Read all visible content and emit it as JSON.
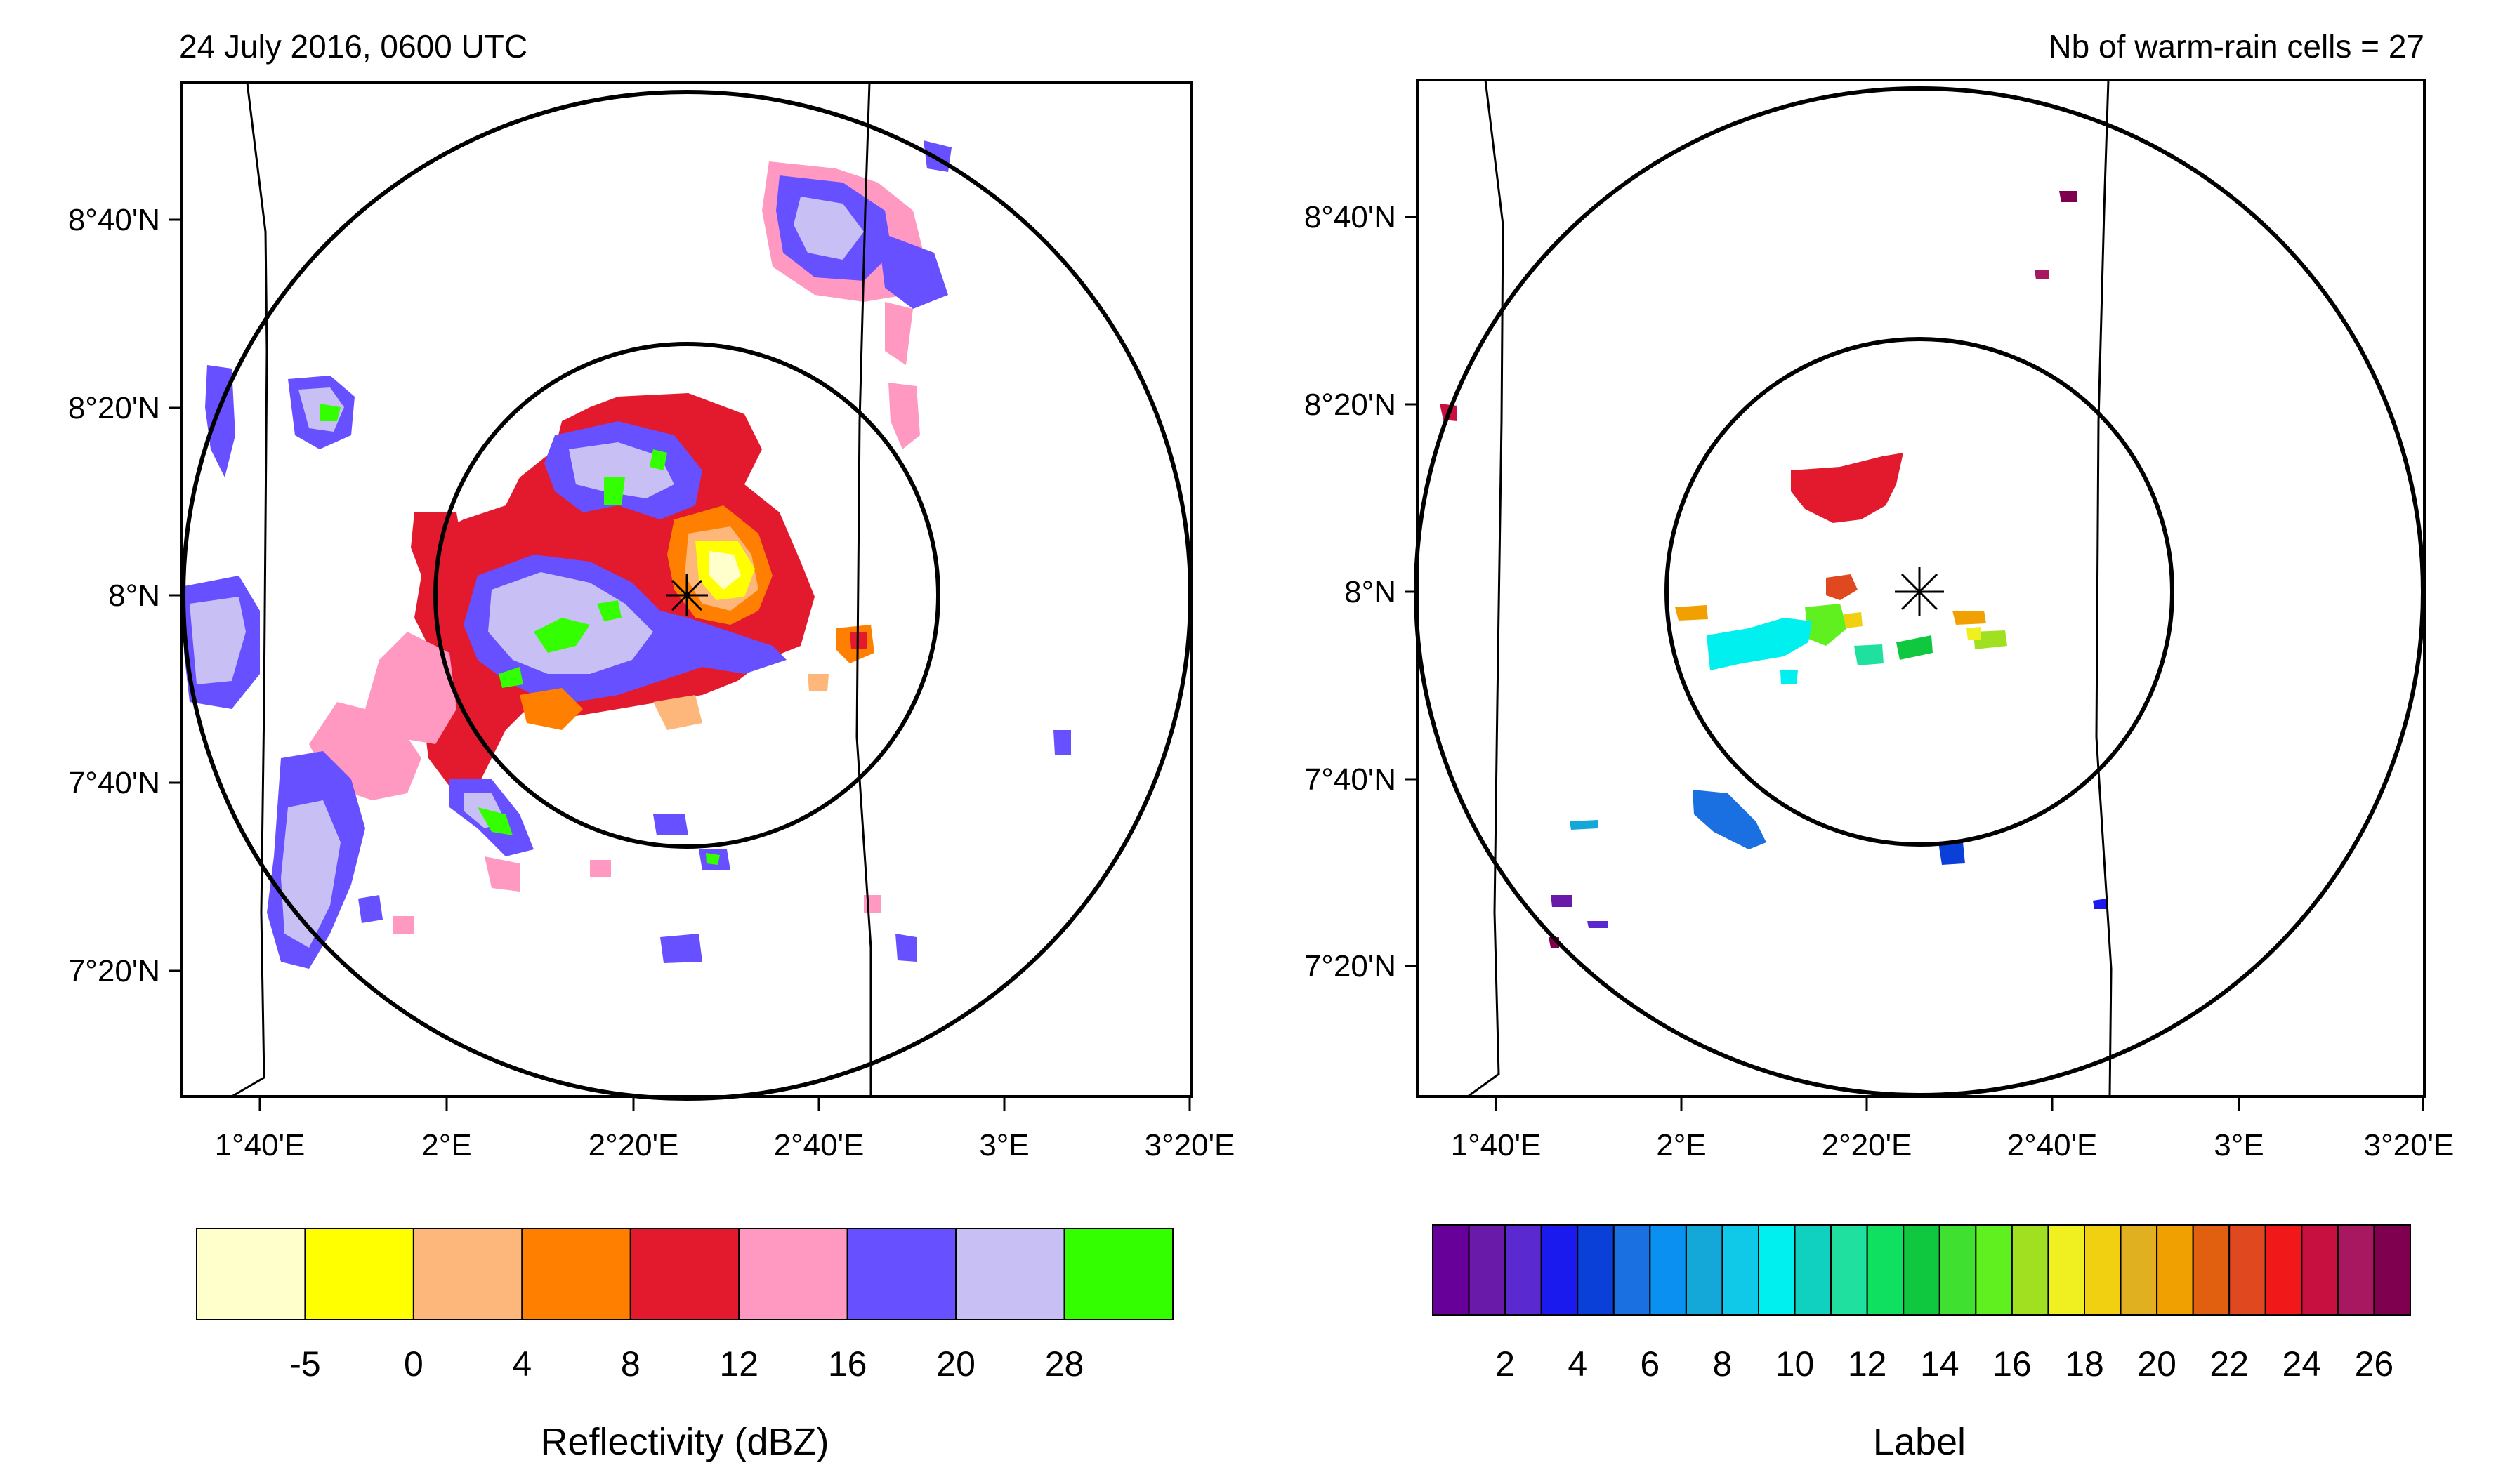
{
  "left_panel": {
    "title": "24 July 2016, 0600 UTC",
    "lat_labels": [
      "8°40'N",
      "8°20'N",
      "8°N",
      "7°40'N",
      "7°20'N"
    ],
    "lon_labels": [
      "1°40'E",
      "2°E",
      "2°20'E",
      "2°40'E",
      "3°E",
      "3°20'E"
    ],
    "colorbar": {
      "title": "Reflectivity (dBZ)",
      "colors": [
        "#ffffcc",
        "#ffff00",
        "#fdb77a",
        "#ff8000",
        "#e31a2e",
        "#ff99c2",
        "#6650ff",
        "#c8bff5",
        "#33ff00"
      ],
      "labels": [
        "-5",
        "0",
        "4",
        "8",
        "12",
        "16",
        "20",
        "28"
      ]
    }
  },
  "right_panel": {
    "title": "Nb of warm-rain cells = 27",
    "lat_labels": [
      "8°40'N",
      "8°20'N",
      "8°N",
      "7°40'N",
      "7°20'N"
    ],
    "lon_labels": [
      "1°40'E",
      "2°E",
      "2°20'E",
      "2°40'E",
      "3°E",
      "3°20'E"
    ],
    "colorbar": {
      "title": "Label",
      "colors": [
        "#660099",
        "#6a1aa8",
        "#5a2ad0",
        "#1a1aee",
        "#0a40d8",
        "#1a70e0",
        "#0a90f0",
        "#14a8d8",
        "#10c8e8",
        "#00f0f0",
        "#10d0c0",
        "#20e0a0",
        "#10e060",
        "#10c840",
        "#40e030",
        "#60f020",
        "#a0e020",
        "#f0f020",
        "#f0d010",
        "#e0b020",
        "#f0a000",
        "#e06010",
        "#e04820",
        "#f01818",
        "#c81040",
        "#a81860",
        "#800050"
      ],
      "labels": [
        "2",
        "4",
        "6",
        "8",
        "10",
        "12",
        "14",
        "16",
        "18",
        "20",
        "22",
        "24",
        "26"
      ]
    }
  }
}
